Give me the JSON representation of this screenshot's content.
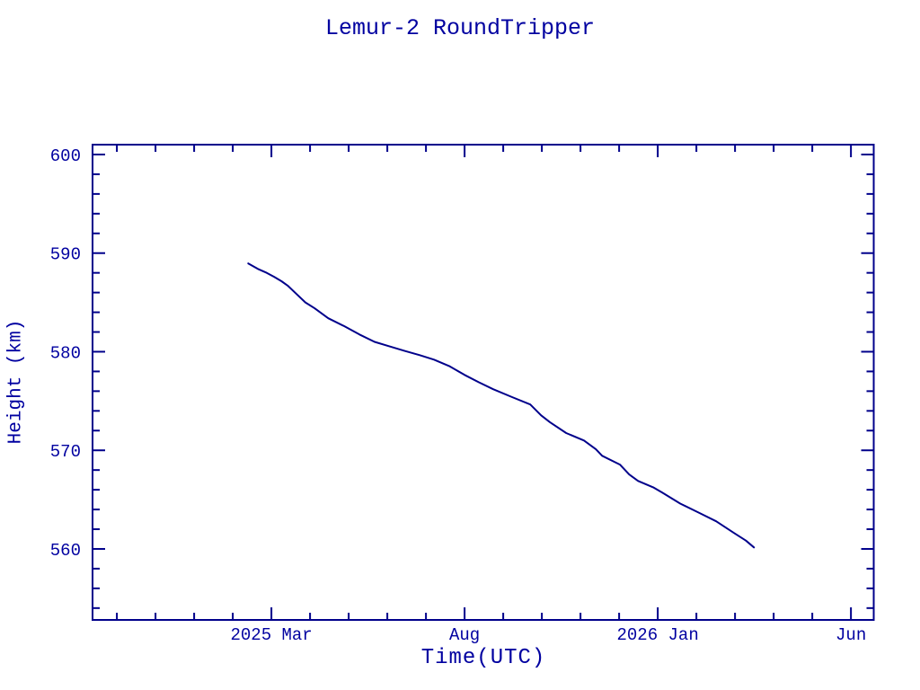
{
  "colors": {
    "background": "#ffffff",
    "axis": "#00008B",
    "text": "#0000A0",
    "line": "#00008B"
  },
  "chart_data": {
    "type": "line",
    "title": "Lemur-2 RoundTripper",
    "xlabel": "Time(UTC)",
    "ylabel": "Height (km)",
    "x_unit": "months since 2025-01 (0 = 2025 Jan tick, 1 unit = 1 month)",
    "xlim": [
      -2.63,
      17.59
    ],
    "ylim": [
      552.8,
      601.0
    ],
    "grid": false,
    "legend": null,
    "x_ticks_major": [
      {
        "pos": 2,
        "label": "2025 Mar"
      },
      {
        "pos": 7,
        "label": "Aug"
      },
      {
        "pos": 12,
        "label": "2026 Jan"
      },
      {
        "pos": 17,
        "label": "Jun"
      }
    ],
    "x_ticks_minor": [
      -2,
      -1,
      0,
      1,
      3,
      4,
      5,
      6,
      8,
      9,
      10,
      11,
      13,
      14,
      15,
      16
    ],
    "y_ticks_major": [
      {
        "pos": 560,
        "label": "560"
      },
      {
        "pos": 570,
        "label": "570"
      },
      {
        "pos": 580,
        "label": "580"
      },
      {
        "pos": 590,
        "label": "590"
      },
      {
        "pos": 600,
        "label": "600"
      }
    ],
    "y_ticks_minor": [
      554,
      556,
      558,
      562,
      564,
      566,
      568,
      572,
      574,
      576,
      578,
      582,
      584,
      586,
      588,
      592,
      594,
      596,
      598
    ],
    "series": [
      {
        "name": "Height (km)",
        "points": [
          [
            1.4,
            588.95
          ],
          [
            1.65,
            588.4
          ],
          [
            1.88,
            588.0
          ],
          [
            2.07,
            587.6
          ],
          [
            2.26,
            587.15
          ],
          [
            2.42,
            586.7
          ],
          [
            2.65,
            585.85
          ],
          [
            2.88,
            585.0
          ],
          [
            3.12,
            584.4
          ],
          [
            3.47,
            583.4
          ],
          [
            3.88,
            582.6
          ],
          [
            4.28,
            581.75
          ],
          [
            4.67,
            581.0
          ],
          [
            5.05,
            580.55
          ],
          [
            5.44,
            580.1
          ],
          [
            5.84,
            579.65
          ],
          [
            6.21,
            579.2
          ],
          [
            6.6,
            578.55
          ],
          [
            7.0,
            577.65
          ],
          [
            7.37,
            576.9
          ],
          [
            7.74,
            576.2
          ],
          [
            8.23,
            575.4
          ],
          [
            8.7,
            574.65
          ],
          [
            8.98,
            573.55
          ],
          [
            9.21,
            572.85
          ],
          [
            9.63,
            571.75
          ],
          [
            10.09,
            571.0
          ],
          [
            10.4,
            570.1
          ],
          [
            10.56,
            569.45
          ],
          [
            11.02,
            568.55
          ],
          [
            11.26,
            567.55
          ],
          [
            11.49,
            566.9
          ],
          [
            11.88,
            566.25
          ],
          [
            12.12,
            565.7
          ],
          [
            12.58,
            564.6
          ],
          [
            13.05,
            563.7
          ],
          [
            13.51,
            562.8
          ],
          [
            13.98,
            561.6
          ],
          [
            14.28,
            560.85
          ],
          [
            14.49,
            560.15
          ]
        ]
      }
    ]
  }
}
